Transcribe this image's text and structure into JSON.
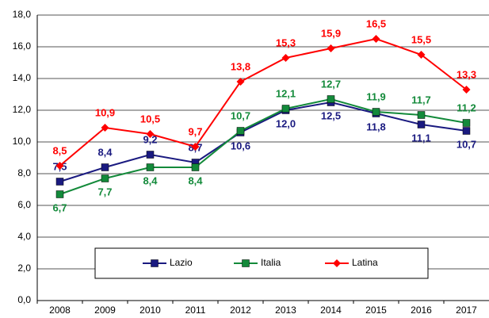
{
  "chart_data": {
    "type": "line",
    "categories": [
      "2008",
      "2009",
      "2010",
      "2011",
      "2012",
      "2013",
      "2014",
      "2015",
      "2016",
      "2017"
    ],
    "ylim": [
      0,
      18
    ],
    "yticks": [
      {
        "value": 0,
        "label": "0,0"
      },
      {
        "value": 2,
        "label": "2,0"
      },
      {
        "value": 4,
        "label": "4,0"
      },
      {
        "value": 6,
        "label": "6,0"
      },
      {
        "value": 8,
        "label": "8,0"
      },
      {
        "value": 10,
        "label": "10,0"
      },
      {
        "value": 12,
        "label": "12,0"
      },
      {
        "value": 14,
        "label": "14,0"
      },
      {
        "value": 16,
        "label": "16,0"
      },
      {
        "value": 18,
        "label": "18,0"
      }
    ],
    "grid": true,
    "legend": "bottom",
    "series": [
      {
        "name": "Lazio",
        "color": "#1a1a80",
        "marker": "square",
        "values": [
          7.5,
          8.4,
          9.2,
          8.7,
          10.6,
          12.0,
          12.5,
          11.8,
          11.1,
          10.7
        ],
        "value_labels": [
          "7,5",
          "8,4",
          "9,2",
          "8,7",
          "10,6",
          "12,0",
          "12,5",
          "11,8",
          "11,1",
          "10,7"
        ]
      },
      {
        "name": "Italia",
        "color": "#138a3a",
        "marker": "square",
        "values": [
          6.7,
          7.7,
          8.4,
          8.4,
          10.7,
          12.1,
          12.7,
          11.9,
          11.7,
          11.2
        ],
        "value_labels": [
          "6,7",
          "7,7",
          "8,4",
          "8,4",
          "10,7",
          "12,1",
          "12,7",
          "11,9",
          "11,7",
          "11,2"
        ]
      },
      {
        "name": "Latina",
        "color": "#ff0000",
        "marker": "diamond",
        "values": [
          8.5,
          10.9,
          10.5,
          9.7,
          13.8,
          15.3,
          15.9,
          16.5,
          15.5,
          13.3
        ],
        "value_labels": [
          "8,5",
          "10,9",
          "10,5",
          "9,7",
          "13,8",
          "15,3",
          "15,9",
          "16,5",
          "15,5",
          "13,3"
        ]
      }
    ]
  }
}
